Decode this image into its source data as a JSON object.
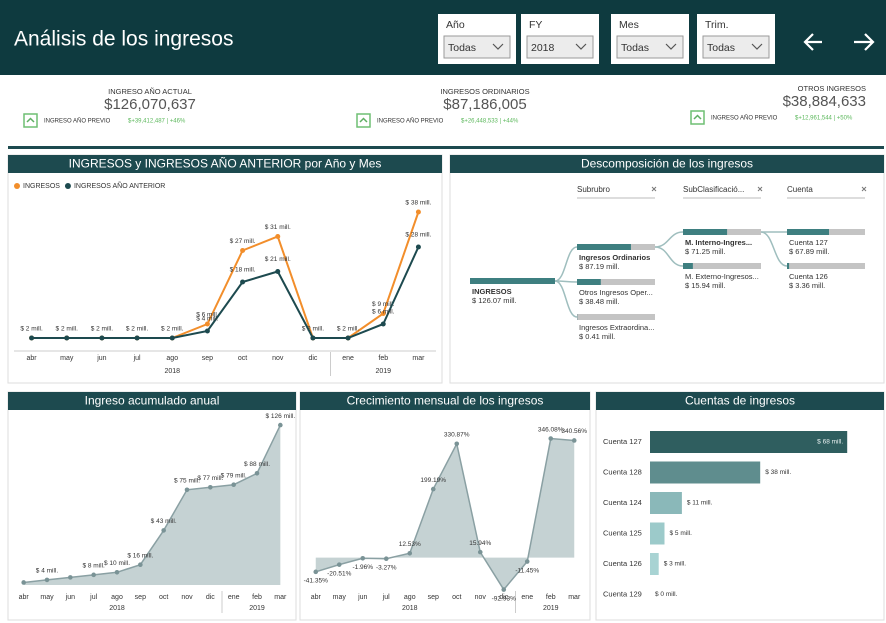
{
  "header": {
    "title": "Análisis de los ingresos"
  },
  "filters": [
    {
      "label": "Año",
      "value": "Todas"
    },
    {
      "label": "FY",
      "value": "2018"
    },
    {
      "label": "Mes",
      "value": "Todas"
    },
    {
      "label": "Trim.",
      "value": "Todas"
    }
  ],
  "kpis": [
    {
      "label": "INGRESO AÑO ACTUAL",
      "value": "$126,070,637",
      "prev_label": "INGRESO AÑO PREVIO",
      "comparison": "$+39,412,487 | +46%"
    },
    {
      "label": "INGRESOS ORDINARIOS",
      "value": "$87,186,005",
      "prev_label": "INGRESO AÑO PREVIO",
      "comparison": "$+26,448,533 | +44%"
    },
    {
      "label": "OTROS INGRESOS",
      "value": "$38,884,633",
      "prev_label": "INGRESO AÑO PREVIO",
      "comparison": "$+12,961,544 | +50%"
    }
  ],
  "chart_data": [
    {
      "type": "line",
      "title": "INGRESOS y INGRESOS AÑO ANTERIOR por Año y Mes",
      "categories": [
        "abr",
        "may",
        "jun",
        "jul",
        "ago",
        "sep",
        "oct",
        "nov",
        "dic",
        "ene",
        "feb",
        "mar"
      ],
      "category_groups": [
        "2018",
        "2018",
        "2018",
        "2018",
        "2018",
        "2018",
        "2018",
        "2018",
        "2018",
        "2019",
        "2019",
        "2019"
      ],
      "ylim": [
        0,
        40
      ],
      "legend": "top-left",
      "series": [
        {
          "name": "INGRESOS",
          "color": "#f28e2b",
          "values": [
            2,
            2,
            2,
            2,
            2,
            6,
            27,
            31,
            2,
            2,
            9,
            38
          ],
          "value_labels": [
            "$ 2 mill.",
            "$ 2 mill.",
            "$ 2 mill.",
            "$ 2 mill.",
            "$ 2 mill.",
            "$ 6 mill.",
            "$ 27 mill.",
            "$ 31 mill.",
            "$ 2 mill.",
            "$ 2 mill.",
            "$ 9 mill.",
            "$ 38 mill."
          ]
        },
        {
          "name": "INGRESOS AÑO ANTERIOR",
          "color": "#1d4a4f",
          "values": [
            2,
            2,
            2,
            2,
            2,
            4,
            18,
            21,
            2,
            2,
            6,
            28
          ],
          "value_labels": [
            null,
            null,
            null,
            null,
            null,
            "$ 4 mill.",
            "$ 18 mill.",
            "$ 21 mill.",
            null,
            null,
            "$ 6 mill.",
            "$ 28 mill."
          ]
        }
      ]
    },
    {
      "type": "area",
      "title": "Ingreso acumulado anual",
      "categories": [
        "abr",
        "may",
        "jun",
        "jul",
        "ago",
        "sep",
        "oct",
        "nov",
        "dic",
        "ene",
        "feb",
        "mar"
      ],
      "category_groups": [
        "2018",
        "2018",
        "2018",
        "2018",
        "2018",
        "2018",
        "2018",
        "2018",
        "2018",
        "2019",
        "2019",
        "2019"
      ],
      "ylim": [
        0,
        130
      ],
      "color": "#c5d2d3",
      "line_color": "#8aa0a3",
      "values": [
        2,
        4,
        6,
        8,
        10,
        16,
        43,
        75,
        77,
        79,
        88,
        126
      ],
      "value_labels": [
        null,
        "$ 4 mill.",
        null,
        "$ 8 mill.",
        "$ 10 mill.",
        "$ 16 mill.",
        "$ 43 mill.",
        "$ 75 mill.",
        "$ 77 mill.",
        "$ 79 mill.",
        "$ 88 mill.",
        "$ 126 mill."
      ]
    },
    {
      "type": "area",
      "title": "Crecimiento mensual de los ingresos",
      "categories": [
        "abr",
        "may",
        "jun",
        "jul",
        "ago",
        "sep",
        "oct",
        "nov",
        "dic",
        "ene",
        "feb",
        "mar"
      ],
      "category_groups": [
        "2018",
        "2018",
        "2018",
        "2018",
        "2018",
        "2018",
        "2018",
        "2018",
        "2018",
        "2019",
        "2019",
        "2019"
      ],
      "ylim": [
        -100,
        400
      ],
      "color": "#c5d2d3",
      "line_color": "#8aa0a3",
      "values": [
        -41.35,
        -20.51,
        -1.96,
        -3.27,
        12.53,
        199.19,
        330.87,
        15.94,
        -92.93,
        -11.45,
        346.08,
        340.56
      ],
      "value_labels": [
        "-41.35%",
        "-20.51%",
        "-1.96%",
        "-3.27%",
        "12.53%",
        "199.19%",
        "330.87%",
        "15.94%",
        "-92.93%",
        "-11.45%",
        "346.08%",
        "340.56%"
      ]
    },
    {
      "type": "hbar",
      "title": "Cuentas de ingresos",
      "categories": [
        "Cuenta 127",
        "Cuenta 128",
        "Cuenta 124",
        "Cuenta 125",
        "Cuenta 126",
        "Cuenta 129"
      ],
      "values": [
        68,
        38,
        11,
        5,
        3,
        0
      ],
      "value_labels": [
        "$ 68 mill.",
        "$ 38 mill.",
        "$ 11 mill.",
        "$ 5 mill.",
        "$ 3 mill.",
        "$ 0 mill."
      ],
      "colors": [
        "#2f5e5f",
        "#5f8d8e",
        "#8ab8b9",
        "#9ccaca",
        "#a8d3d3",
        "#b7dcdc"
      ],
      "xlim": [
        0,
        70
      ]
    }
  ],
  "decomposition": {
    "title": "Descomposición de los ingresos",
    "levels": [
      "Subrubro",
      "SubClasificació...",
      "Cuenta"
    ],
    "root": {
      "label": "INGRESOS",
      "value": 126.07,
      "value_label": "$ 126.07 mill.",
      "children": [
        {
          "label": "Ingresos Ordinarios",
          "value": 87.19,
          "value_label": "$ 87.19 mill.",
          "children": [
            {
              "label": "M. Interno-Ingres...",
              "value": 71.25,
              "value_label": "$ 71.25 mill.",
              "children": [
                {
                  "label": "Cuenta 127",
                  "value": 67.89,
                  "value_label": "$ 67.89 mill."
                },
                {
                  "label": "Cuenta 126",
                  "value": 3.36,
                  "value_label": "$ 3.36 mill."
                }
              ]
            },
            {
              "label": "M. Externo-Ingresos...",
              "value": 15.94,
              "value_label": "$ 15.94 mill."
            }
          ]
        },
        {
          "label": "Otros Ingresos Oper...",
          "value": 38.48,
          "value_label": "$ 38.48 mill."
        },
        {
          "label": "Ingresos Extraordina...",
          "value": 0.41,
          "value_label": "$ 0.41 mill."
        }
      ]
    }
  }
}
